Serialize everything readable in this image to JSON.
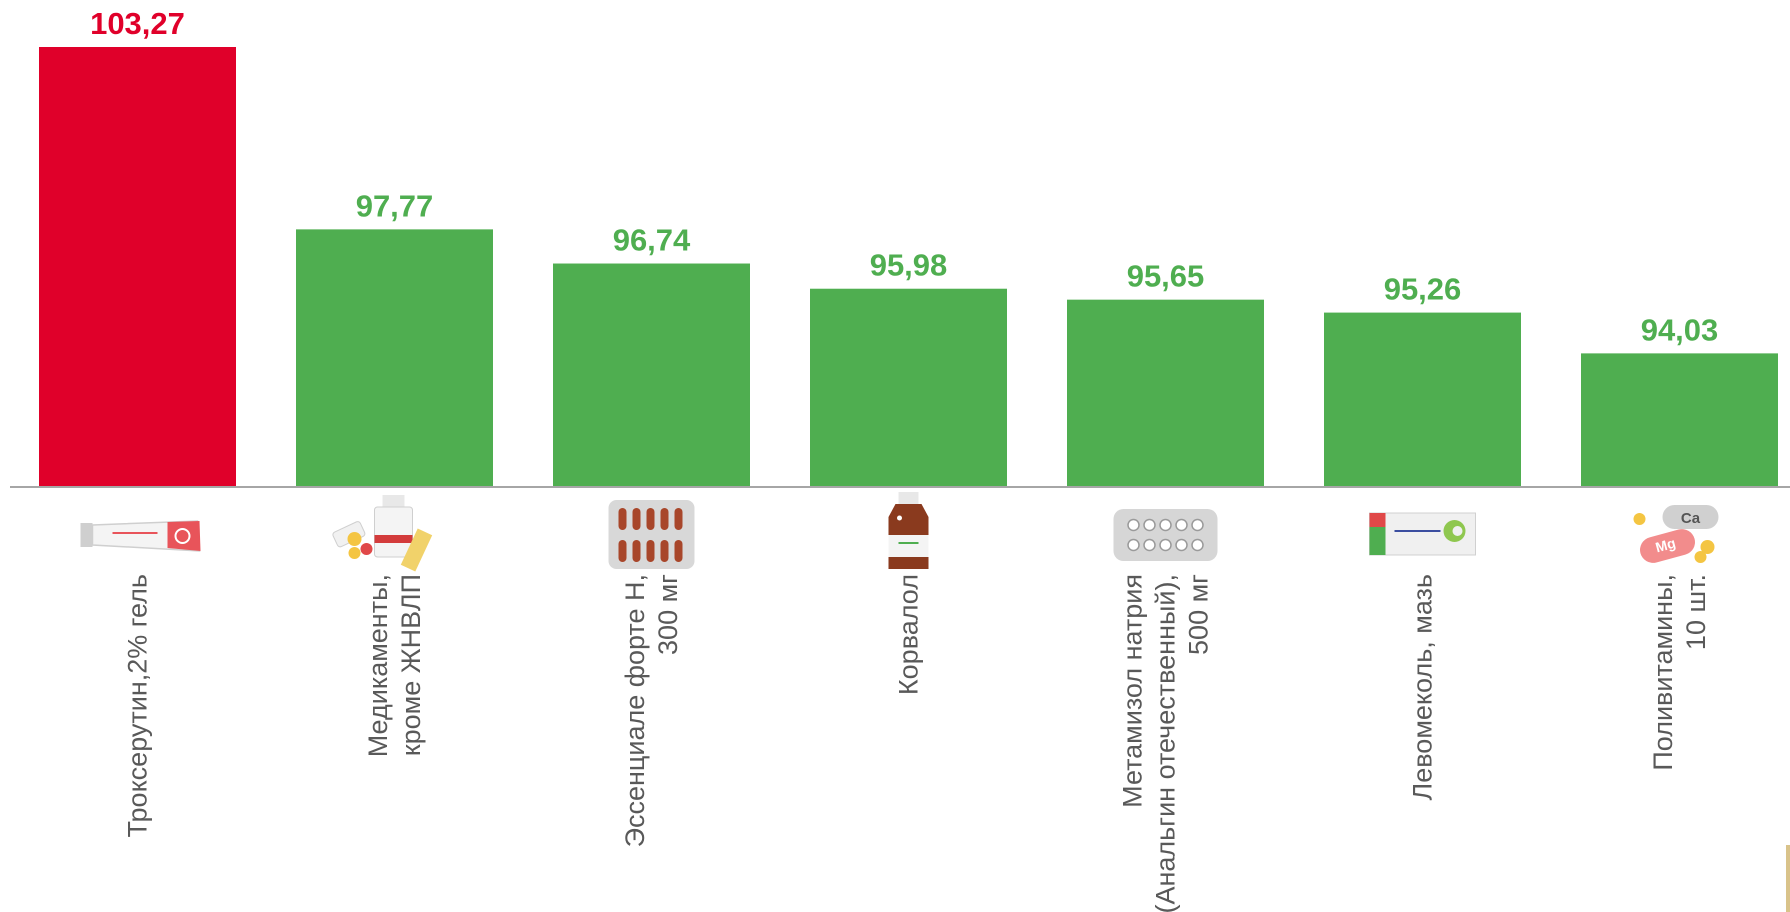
{
  "chart_data": {
    "type": "bar",
    "title": "",
    "xlabel": "",
    "ylabel": "",
    "ylim": [
      90,
      104
    ],
    "grid": false,
    "legend": "none",
    "categories": [
      "Троксерутин,2% гель",
      "Медикаменты,\nкроме ЖНВЛП",
      "Эссенциале форте Н,\n300 мг",
      "Корвалол",
      "Метамизол натрия\n(Анальгин отечественный),\n500 мг",
      "Левомеколь, мазь",
      "Поливитамины,\n10 шт."
    ],
    "values": [
      103.27,
      97.77,
      96.74,
      95.98,
      95.65,
      95.26,
      94.03
    ],
    "value_labels": [
      "103,27",
      "97,77",
      "96,74",
      "95,98",
      "95,65",
      "95,26",
      "94,03"
    ],
    "bar_colors": [
      "#e0002a",
      "#4fae50",
      "#4fae50",
      "#4fae50",
      "#4fae50",
      "#4fae50",
      "#4fae50"
    ],
    "icons": [
      "gel-tube-icon",
      "medicine-bottles-icon",
      "capsule-blister-icon",
      "dropper-bottle-icon",
      "tablet-blister-icon",
      "ointment-box-icon",
      "vitamin-pills-icon"
    ],
    "icon_text": {
      "ca": "Ca",
      "mg": "Mg"
    }
  },
  "colors": {
    "axis": "#a6a6a6",
    "category_text": "#595959",
    "highlight": "#e0002a",
    "normal": "#4fae50"
  }
}
